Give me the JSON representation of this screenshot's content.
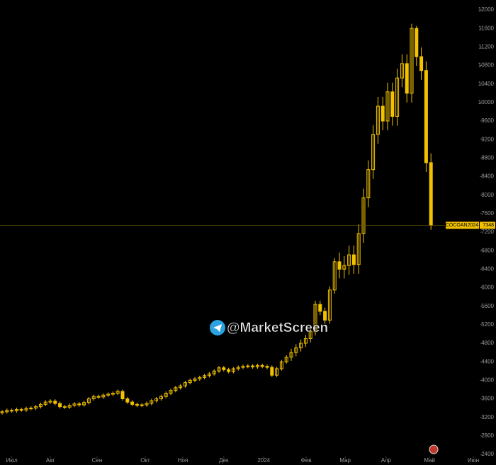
{
  "chart_data": {
    "type": "candlestick",
    "symbol": "COCOAN2024",
    "last_price": 7348,
    "watermark": "@MarketScreen",
    "color": "#f2c200",
    "xlim": [
      0,
      100
    ],
    "xticks": [
      {
        "value": 2,
        "label": "Июл"
      },
      {
        "value": 10,
        "label": "Авг"
      },
      {
        "value": 19.7,
        "label": "Сен"
      },
      {
        "value": 29.7,
        "label": "Окт"
      },
      {
        "value": 37.5,
        "label": "Ноя"
      },
      {
        "value": 46,
        "label": "Дек"
      },
      {
        "value": 54.3,
        "label": "2024"
      },
      {
        "value": 63.1,
        "label": "Фев"
      },
      {
        "value": 71.2,
        "label": "Мар"
      },
      {
        "value": 79.7,
        "label": "Апр"
      },
      {
        "value": 88.7,
        "label": "Май"
      },
      {
        "value": 97.8,
        "label": "Июн"
      }
    ],
    "ylim": [
      2400,
      12000
    ],
    "yticks": [
      2400,
      2800,
      3200,
      3600,
      4000,
      4400,
      4800,
      5200,
      5600,
      6000,
      6400,
      6800,
      7200,
      7600,
      8000,
      8400,
      8800,
      9200,
      9600,
      10000,
      10400,
      10800,
      11200,
      11600,
      12000
    ],
    "open": [
      3300,
      3320,
      3350,
      3340,
      3370,
      3360,
      3390,
      3400,
      3430,
      3480,
      3530,
      3550,
      3500,
      3430,
      3420,
      3460,
      3490,
      3470,
      3520,
      3600,
      3650,
      3640,
      3680,
      3700,
      3720,
      3760,
      3600,
      3530,
      3480,
      3460,
      3470,
      3500,
      3560,
      3600,
      3650,
      3720,
      3780,
      3840,
      3880,
      3950,
      4000,
      4030,
      4060,
      4100,
      4140,
      4200,
      4270,
      4230,
      4190,
      4250,
      4280,
      4300,
      4310,
      4290,
      4320,
      4300,
      4280,
      4110,
      4250,
      4400,
      4500,
      4600,
      4700,
      4800,
      4900,
      5050,
      5640,
      5490,
      5300,
      5950,
      6560,
      6400,
      6480,
      6710,
      6500,
      7170,
      7940,
      8550,
      9310,
      9920,
      9600,
      10230,
      9700,
      10530,
      10840,
      10200,
      11600,
      10990,
      10690,
      8700
    ],
    "high": [
      3360,
      3390,
      3390,
      3410,
      3410,
      3430,
      3440,
      3470,
      3520,
      3570,
      3590,
      3590,
      3540,
      3470,
      3500,
      3530,
      3530,
      3560,
      3640,
      3690,
      3690,
      3720,
      3740,
      3760,
      3800,
      3800,
      3640,
      3570,
      3520,
      3510,
      3540,
      3600,
      3640,
      3690,
      3760,
      3820,
      3880,
      3920,
      3990,
      4040,
      4070,
      4100,
      4140,
      4180,
      4240,
      4310,
      4310,
      4270,
      4290,
      4320,
      4340,
      4350,
      4350,
      4360,
      4360,
      4340,
      4320,
      4290,
      4440,
      4540,
      4680,
      4780,
      4880,
      4980,
      5130,
      5720,
      5720,
      5570,
      6030,
      6640,
      6760,
      6680,
      6910,
      6910,
      7370,
      8140,
      8750,
      9510,
      10120,
      10120,
      10430,
      10430,
      10730,
      11040,
      11040,
      11700,
      11650,
      11190,
      10890,
      8900
    ],
    "low": [
      3260,
      3280,
      3300,
      3300,
      3320,
      3320,
      3350,
      3360,
      3390,
      3440,
      3490,
      3460,
      3390,
      3380,
      3380,
      3420,
      3430,
      3430,
      3480,
      3560,
      3600,
      3600,
      3640,
      3660,
      3680,
      3560,
      3490,
      3440,
      3420,
      3420,
      3430,
      3460,
      3520,
      3560,
      3610,
      3680,
      3740,
      3800,
      3840,
      3910,
      3960,
      3990,
      4020,
      4060,
      4100,
      4160,
      4190,
      4150,
      4150,
      4210,
      4240,
      4260,
      4250,
      4250,
      4260,
      4240,
      4070,
      4070,
      4210,
      4360,
      4420,
      4520,
      4620,
      4720,
      4820,
      4970,
      5410,
      5220,
      5220,
      5870,
      6200,
      6200,
      6280,
      6300,
      6300,
      6970,
      7740,
      8350,
      9110,
      9400,
      9400,
      9500,
      9500,
      10330,
      10000,
      10000,
      10790,
      10490,
      8500,
      7250
    ],
    "close": [
      3320,
      3350,
      3340,
      3370,
      3360,
      3390,
      3400,
      3430,
      3480,
      3530,
      3550,
      3500,
      3430,
      3420,
      3460,
      3490,
      3470,
      3520,
      3600,
      3650,
      3640,
      3680,
      3700,
      3720,
      3760,
      3600,
      3530,
      3480,
      3460,
      3470,
      3500,
      3560,
      3600,
      3650,
      3720,
      3780,
      3840,
      3880,
      3950,
      4000,
      4030,
      4060,
      4100,
      4140,
      4200,
      4270,
      4230,
      4190,
      4250,
      4280,
      4300,
      4310,
      4290,
      4320,
      4300,
      4280,
      4110,
      4250,
      4400,
      4500,
      4600,
      4700,
      4800,
      4900,
      5050,
      5640,
      5490,
      5300,
      5950,
      6560,
      6400,
      6480,
      6710,
      6500,
      7170,
      7940,
      8550,
      9310,
      9920,
      9600,
      10230,
      9700,
      10530,
      10840,
      10200,
      11600,
      10990,
      10690,
      8700,
      7348
    ]
  }
}
